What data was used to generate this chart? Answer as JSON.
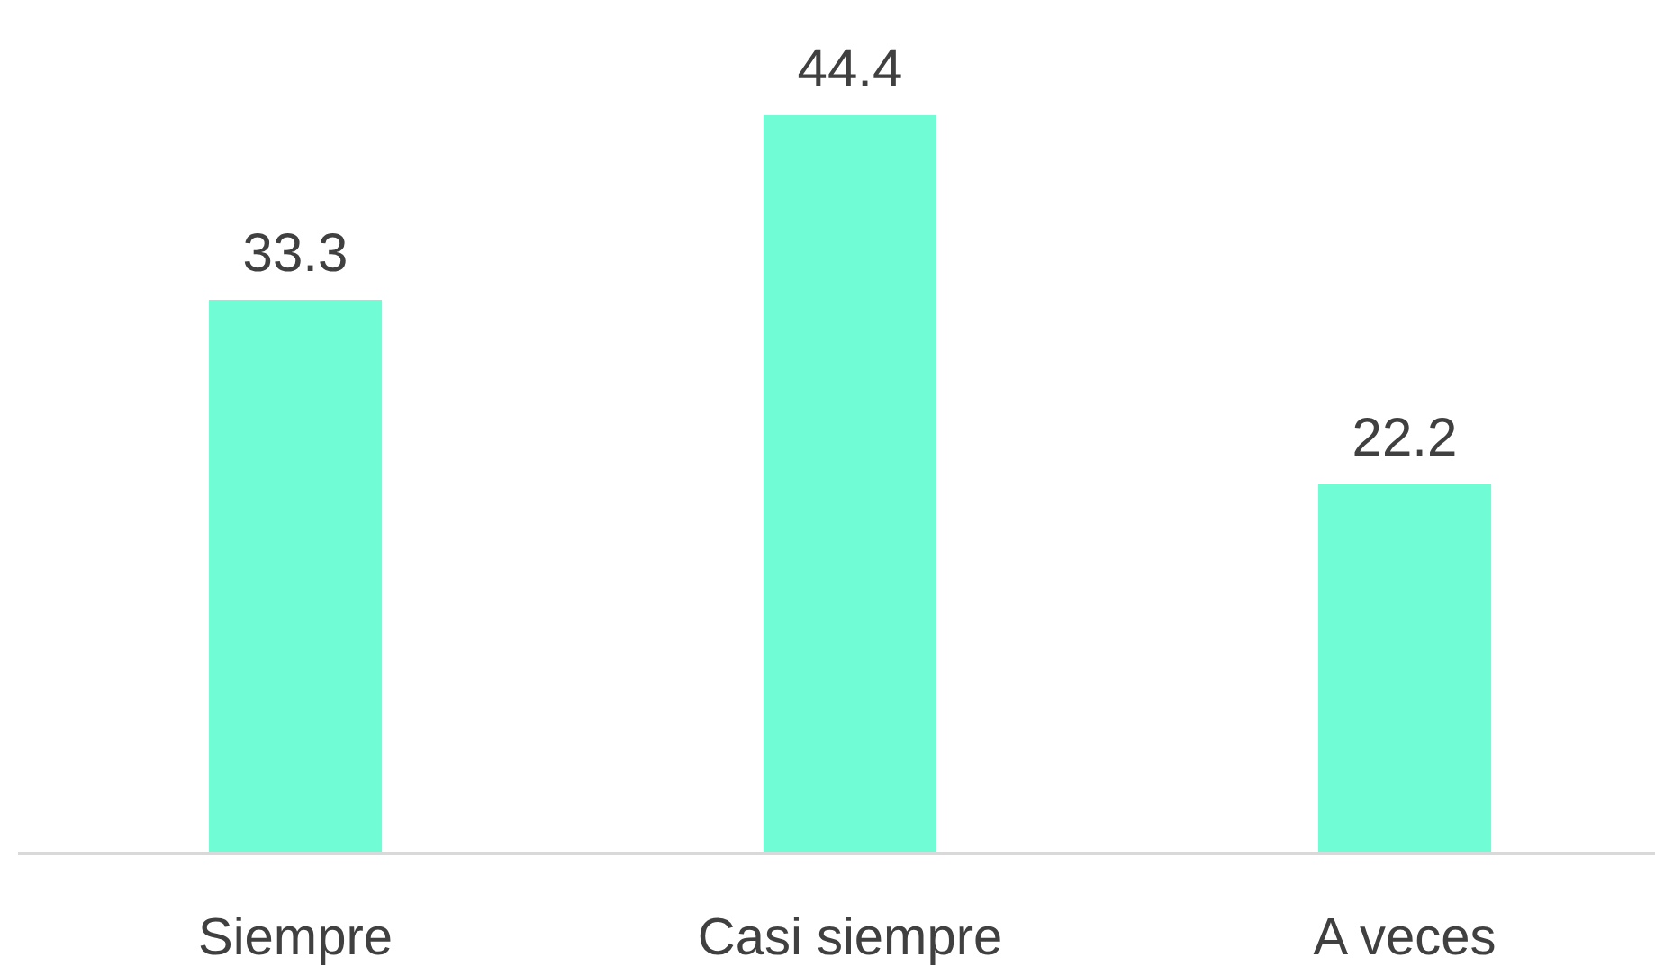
{
  "chart_data": {
    "type": "bar",
    "categories": [
      "Siempre",
      "Casi siempre",
      "A veces"
    ],
    "values": [
      33.3,
      44.4,
      22.2
    ],
    "color": "#70fdd5",
    "data_labels": true,
    "grid": false
  }
}
